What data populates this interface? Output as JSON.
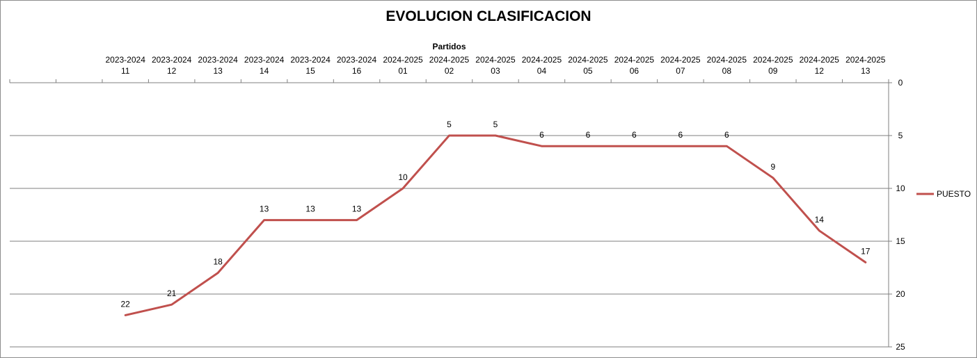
{
  "chart_data": {
    "type": "line",
    "title": "EVOLUCION CLASIFICACION",
    "xlabel": "Partidos",
    "ylabel": "",
    "y_inverted": true,
    "ylim": [
      0,
      25
    ],
    "yticks": [
      "0",
      "5",
      "10",
      "15",
      "20",
      "25"
    ],
    "grid": true,
    "legend_position": "right",
    "categories": [
      {
        "season": "",
        "match": ""
      },
      {
        "season": "",
        "match": ""
      },
      {
        "season": "2023-2024",
        "match": "11"
      },
      {
        "season": "2023-2024",
        "match": "12"
      },
      {
        "season": "2023-2024",
        "match": "13"
      },
      {
        "season": "2023-2024",
        "match": "14"
      },
      {
        "season": "2023-2024",
        "match": "15"
      },
      {
        "season": "2023-2024",
        "match": "16"
      },
      {
        "season": "2024-2025",
        "match": "01"
      },
      {
        "season": "2024-2025",
        "match": "02"
      },
      {
        "season": "2024-2025",
        "match": "03"
      },
      {
        "season": "2024-2025",
        "match": "04"
      },
      {
        "season": "2024-2025",
        "match": "05"
      },
      {
        "season": "2024-2025",
        "match": "06"
      },
      {
        "season": "2024-2025",
        "match": "07"
      },
      {
        "season": "2024-2025",
        "match": "08"
      },
      {
        "season": "2024-2025",
        "match": "09"
      },
      {
        "season": "2024-2025",
        "match": "12"
      },
      {
        "season": "2024-2025",
        "match": "13"
      }
    ],
    "series": [
      {
        "name": "PUESTO",
        "color": "#c0504d",
        "values": [
          null,
          null,
          22,
          21,
          18,
          13,
          13,
          13,
          10,
          5,
          5,
          6,
          6,
          6,
          6,
          6,
          9,
          14,
          17
        ]
      }
    ]
  }
}
